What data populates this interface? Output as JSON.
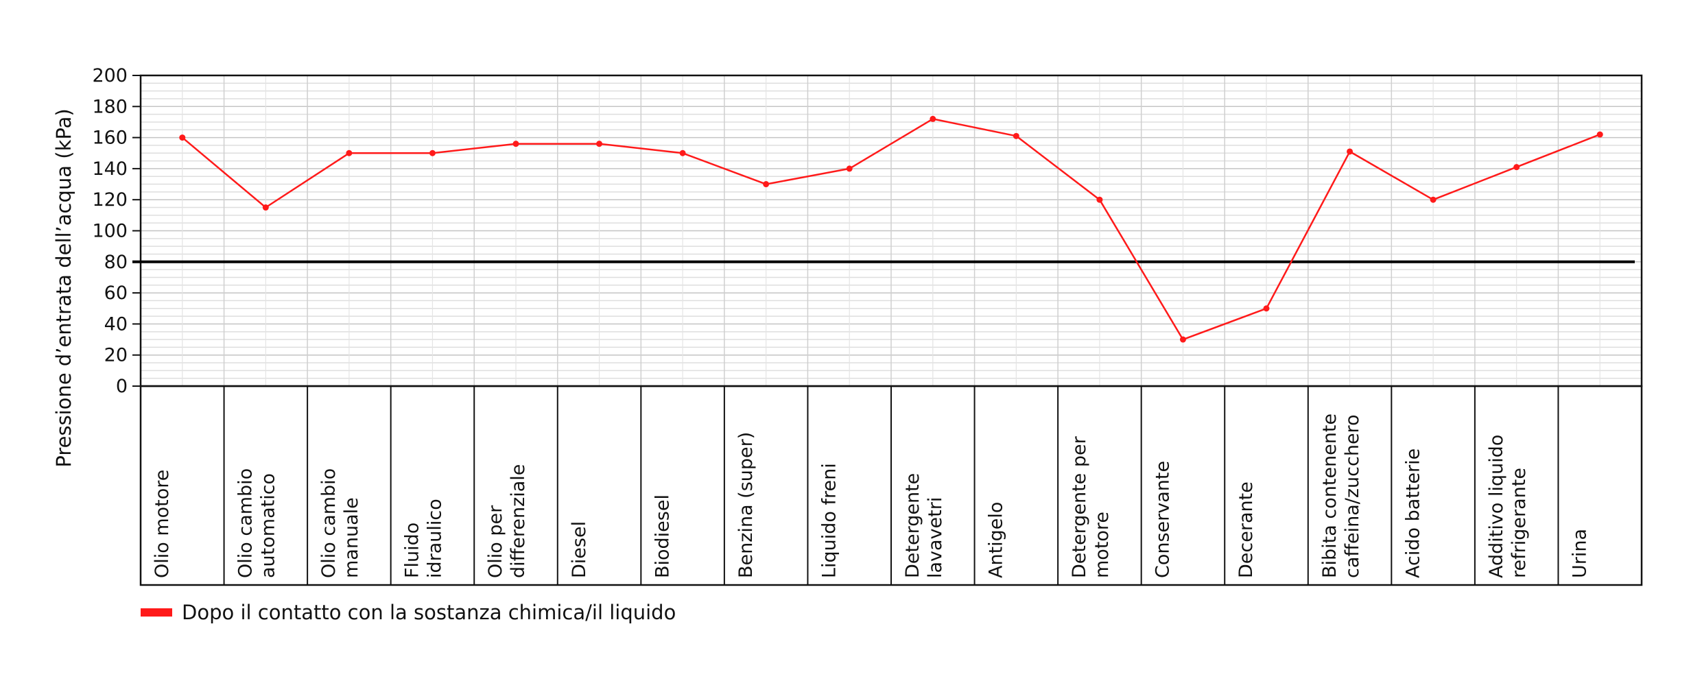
{
  "chart_data": {
    "type": "line",
    "ylabel": "Pressione d’entrata dell’acqua (kPa)",
    "ylim": [
      0,
      200
    ],
    "yticks": [
      0,
      20,
      40,
      60,
      80,
      100,
      120,
      140,
      160,
      180,
      200
    ],
    "grid": true,
    "reference_line": {
      "y": 80,
      "color": "#000000"
    },
    "categories": [
      [
        "Olio motore"
      ],
      [
        "Olio cambio",
        "automatico"
      ],
      [
        "Olio cambio",
        "manuale"
      ],
      [
        "Fluido",
        "idraulico"
      ],
      [
        "Olio per",
        "differenziale"
      ],
      [
        "Diesel"
      ],
      [
        "Biodiesel"
      ],
      [
        "Benzina (super)"
      ],
      [
        "Liquido freni"
      ],
      [
        "Detergente",
        "lavavetri"
      ],
      [
        "Antigelo"
      ],
      [
        "Detergente per",
        "motore"
      ],
      [
        "Conservante"
      ],
      [
        "Decerante"
      ],
      [
        "Bibita contenente",
        "caffeina/zucchero"
      ],
      [
        "Acido batterie"
      ],
      [
        "Additivo liquido",
        "refrigerante"
      ],
      [
        "Urina"
      ]
    ],
    "series": [
      {
        "name": "Dopo il contatto con la sostanza chimica/il liquido",
        "color": "#ff1a1a",
        "values": [
          160,
          115,
          150,
          150,
          156,
          156,
          150,
          130,
          140,
          172,
          161,
          120,
          30,
          50,
          151,
          120,
          141,
          162
        ]
      }
    ],
    "legend_position": "bottom-left"
  }
}
